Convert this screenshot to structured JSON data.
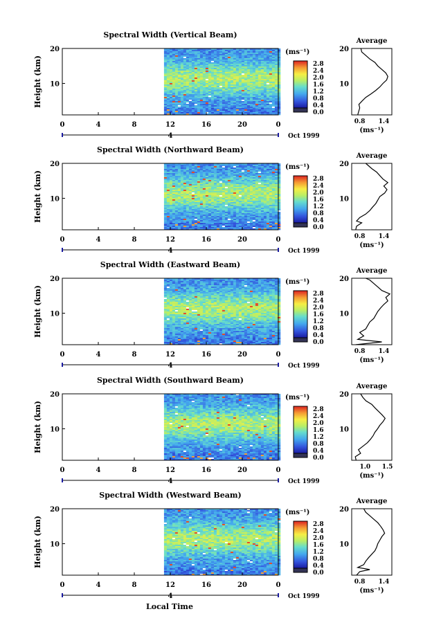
{
  "figure": {
    "xlabel": "Local Time",
    "date_label": "Oct 1999"
  },
  "chart_data": [
    {
      "type": "heatmap",
      "title": "Spectral Width (Vertical Beam)",
      "xlabel": "",
      "ylabel": "Height (km)",
      "x_ticks": [
        "0",
        "4",
        "8",
        "12",
        "16",
        "20",
        "0"
      ],
      "y_ticks": [
        "20",
        "10"
      ],
      "day_marker": "4",
      "xlim": [
        0,
        24
      ],
      "ylim": [
        1,
        20
      ],
      "data_start_hour": 11.3,
      "colorbar": {
        "unit": "(ms⁻¹)",
        "ticks": [
          "2.8",
          "2.4",
          "2.0",
          "1.6",
          "1.2",
          "0.8",
          "0.4",
          "0.0"
        ],
        "range": [
          0,
          2.8
        ]
      },
      "average": {
        "title": "Average",
        "xlabel": "(ms⁻¹)",
        "x_ticks": [
          "0.8",
          "1.4"
        ],
        "y_ticks": [
          "20",
          "10"
        ],
        "xlim": [
          0.6,
          1.6
        ],
        "profile": [
          [
            1.0,
            0.75
          ],
          [
            3.0,
            0.8
          ],
          [
            4.0,
            0.78
          ],
          [
            5.0,
            0.86
          ],
          [
            6.0,
            0.95
          ],
          [
            7.0,
            1.08
          ],
          [
            8.0,
            1.2
          ],
          [
            9.0,
            1.3
          ],
          [
            10.0,
            1.38
          ],
          [
            11.0,
            1.47
          ],
          [
            12.0,
            1.5
          ],
          [
            13.0,
            1.45
          ],
          [
            14.0,
            1.35
          ],
          [
            15.0,
            1.25
          ],
          [
            16.0,
            1.18
          ],
          [
            17.0,
            1.05
          ],
          [
            18.0,
            0.95
          ],
          [
            19.0,
            0.85
          ],
          [
            20.0,
            0.83
          ]
        ]
      }
    },
    {
      "type": "heatmap",
      "title": "Spectral Width (Northward Beam)",
      "xlabel": "",
      "ylabel": "Height (km)",
      "x_ticks": [
        "0",
        "4",
        "8",
        "12",
        "16",
        "20",
        "0"
      ],
      "y_ticks": [
        "20",
        "10"
      ],
      "day_marker": "4",
      "xlim": [
        0,
        24
      ],
      "ylim": [
        1,
        20
      ],
      "data_start_hour": 11.3,
      "colorbar": {
        "unit": "(ms⁻¹)",
        "ticks": [
          "2.8",
          "2.4",
          "2.0",
          "1.6",
          "1.2",
          "0.8",
          "0.4",
          "0.0"
        ],
        "range": [
          0,
          2.8
        ]
      },
      "average": {
        "title": "Average",
        "xlabel": "(ms⁻¹)",
        "x_ticks": [
          "0.8",
          "1.4"
        ],
        "y_ticks": [
          "20",
          "10"
        ],
        "xlim": [
          0.6,
          1.6
        ],
        "profile": [
          [
            1.0,
            0.7
          ],
          [
            2.0,
            0.72
          ],
          [
            3.0,
            0.85
          ],
          [
            3.5,
            0.72
          ],
          [
            4.5,
            0.8
          ],
          [
            5.5,
            0.95
          ],
          [
            6.5,
            1.05
          ],
          [
            7.5,
            1.12
          ],
          [
            8.5,
            1.2
          ],
          [
            9.5,
            1.25
          ],
          [
            10.5,
            1.3
          ],
          [
            11.5,
            1.42
          ],
          [
            12.5,
            1.48
          ],
          [
            13.5,
            1.4
          ],
          [
            14.5,
            1.5
          ],
          [
            15.5,
            1.38
          ],
          [
            16.5,
            1.3
          ],
          [
            17.5,
            1.22
          ],
          [
            18.5,
            1.1
          ],
          [
            19.5,
            1.0
          ],
          [
            20.0,
            0.95
          ]
        ]
      }
    },
    {
      "type": "heatmap",
      "title": "Spectral Width (Eastward Beam)",
      "xlabel": "",
      "ylabel": "Height (km)",
      "x_ticks": [
        "0",
        "4",
        "8",
        "12",
        "16",
        "20",
        "0"
      ],
      "y_ticks": [
        "20",
        "10"
      ],
      "day_marker": "4",
      "xlim": [
        0,
        24
      ],
      "ylim": [
        1,
        20
      ],
      "data_start_hour": 11.3,
      "colorbar": {
        "unit": "(ms⁻¹)",
        "ticks": [
          "2.8",
          "2.4",
          "2.0",
          "1.6",
          "1.2",
          "0.8",
          "0.4",
          "0.0"
        ],
        "range": [
          0,
          2.8
        ]
      },
      "average": {
        "title": "Average",
        "xlabel": "(ms⁻¹)",
        "x_ticks": [
          "0.8",
          "1.4"
        ],
        "y_ticks": [
          "20",
          "10"
        ],
        "xlim": [
          0.6,
          1.6
        ],
        "profile": [
          [
            1.0,
            0.7
          ],
          [
            1.8,
            1.35
          ],
          [
            2.5,
            0.75
          ],
          [
            3.5,
            0.9
          ],
          [
            4.5,
            0.8
          ],
          [
            5.5,
            0.95
          ],
          [
            6.5,
            1.0
          ],
          [
            7.5,
            1.05
          ],
          [
            8.5,
            1.15
          ],
          [
            9.5,
            1.2
          ],
          [
            10.5,
            1.25
          ],
          [
            11.5,
            1.32
          ],
          [
            12.5,
            1.4
          ],
          [
            13.5,
            1.5
          ],
          [
            14.5,
            1.45
          ],
          [
            15.5,
            1.55
          ],
          [
            16.5,
            1.35
          ],
          [
            17.5,
            1.25
          ],
          [
            18.5,
            1.15
          ],
          [
            19.5,
            1.05
          ],
          [
            20.0,
            0.95
          ]
        ]
      }
    },
    {
      "type": "heatmap",
      "title": "Spectral Width (Southward Beam)",
      "xlabel": "",
      "ylabel": "Height (km)",
      "x_ticks": [
        "0",
        "4",
        "8",
        "12",
        "16",
        "20",
        "0"
      ],
      "y_ticks": [
        "20",
        "10"
      ],
      "day_marker": "4",
      "xlim": [
        0,
        24
      ],
      "ylim": [
        1,
        20
      ],
      "data_start_hour": 11.3,
      "colorbar": {
        "unit": "(ms⁻¹)",
        "ticks": [
          "2.8",
          "2.4",
          "2.0",
          "1.6",
          "1.2",
          "0.8",
          "0.4",
          "0.0"
        ],
        "range": [
          0,
          2.8
        ]
      },
      "average": {
        "title": "Average",
        "xlabel": "(ms⁻¹)",
        "x_ticks": [
          "1.0",
          "1.5"
        ],
        "y_ticks": [
          "20",
          "10"
        ],
        "xlim": [
          0.7,
          1.6
        ],
        "profile": [
          [
            1.0,
            0.8
          ],
          [
            2.0,
            0.78
          ],
          [
            3.0,
            0.9
          ],
          [
            4.0,
            0.85
          ],
          [
            5.0,
            0.95
          ],
          [
            6.0,
            1.05
          ],
          [
            7.0,
            1.12
          ],
          [
            8.0,
            1.18
          ],
          [
            9.0,
            1.22
          ],
          [
            10.0,
            1.28
          ],
          [
            11.0,
            1.33
          ],
          [
            12.0,
            1.4
          ],
          [
            13.0,
            1.45
          ],
          [
            14.0,
            1.38
          ],
          [
            15.0,
            1.3
          ],
          [
            16.0,
            1.22
          ],
          [
            17.0,
            1.15
          ],
          [
            18.0,
            1.02
          ],
          [
            19.0,
            0.95
          ],
          [
            20.0,
            0.9
          ]
        ]
      }
    },
    {
      "type": "heatmap",
      "title": "Spectral Width (Westward Beam)",
      "xlabel": "",
      "ylabel": "Height (km)",
      "x_ticks": [
        "0",
        "4",
        "8",
        "12",
        "16",
        "20",
        "0"
      ],
      "y_ticks": [
        "20",
        "10"
      ],
      "day_marker": "4",
      "xlim": [
        0,
        24
      ],
      "ylim": [
        1,
        20
      ],
      "data_start_hour": 11.3,
      "colorbar": {
        "unit": "(ms⁻¹)",
        "ticks": [
          "2.8",
          "2.4",
          "2.0",
          "1.6",
          "1.2",
          "0.8",
          "0.4",
          "0.0"
        ],
        "range": [
          0,
          2.8
        ]
      },
      "average": {
        "title": "Average",
        "xlabel": "(ms⁻¹)",
        "x_ticks": [
          "0.8",
          "1.4"
        ],
        "y_ticks": [
          "20",
          "10"
        ],
        "xlim": [
          0.6,
          1.6
        ],
        "profile": [
          [
            1.0,
            0.72
          ],
          [
            2.0,
            0.8
          ],
          [
            2.6,
            1.05
          ],
          [
            3.2,
            0.75
          ],
          [
            4.0,
            0.9
          ],
          [
            5.0,
            0.95
          ],
          [
            6.0,
            1.02
          ],
          [
            7.0,
            1.1
          ],
          [
            8.0,
            1.18
          ],
          [
            9.0,
            1.22
          ],
          [
            10.0,
            1.25
          ],
          [
            11.0,
            1.3
          ],
          [
            12.0,
            1.35
          ],
          [
            13.0,
            1.42
          ],
          [
            14.0,
            1.38
          ],
          [
            15.0,
            1.32
          ],
          [
            16.0,
            1.25
          ],
          [
            17.0,
            1.15
          ],
          [
            18.0,
            1.05
          ],
          [
            19.0,
            0.95
          ],
          [
            20.0,
            0.9
          ]
        ]
      }
    }
  ]
}
